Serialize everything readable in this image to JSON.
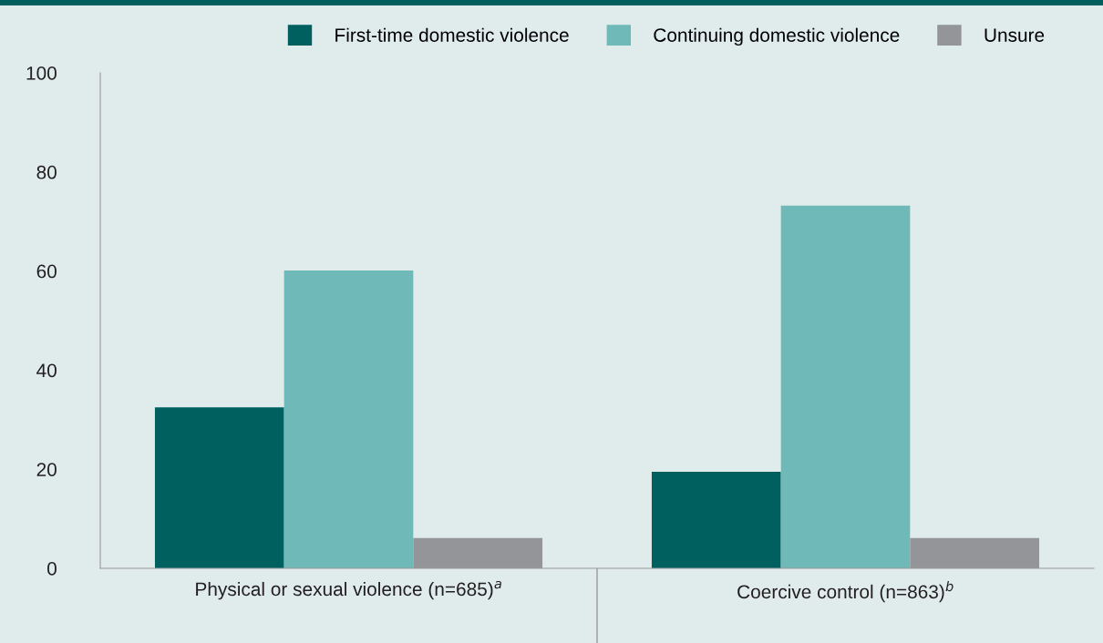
{
  "chart_data": {
    "type": "bar",
    "categories": [
      "Physical or sexual violence (n=685)$^{a}$",
      "Coercive control (n=863)$^{b}$"
    ],
    "series": [
      {
        "name": "First-time domestic violence",
        "color": "#006060",
        "values": [
          32.5,
          19.5
        ]
      },
      {
        "name": "Continuing domestic violence",
        "color": "#6fbab8",
        "values": [
          60.1,
          73.2
        ]
      },
      {
        "name": "Unsure",
        "color": "#939598",
        "values": [
          6.1,
          6.1
        ]
      }
    ],
    "ylim": [
      0,
      100
    ],
    "yticks": [
      0,
      20,
      40,
      60,
      80,
      100
    ],
    "grid": false,
    "legend": "top"
  }
}
